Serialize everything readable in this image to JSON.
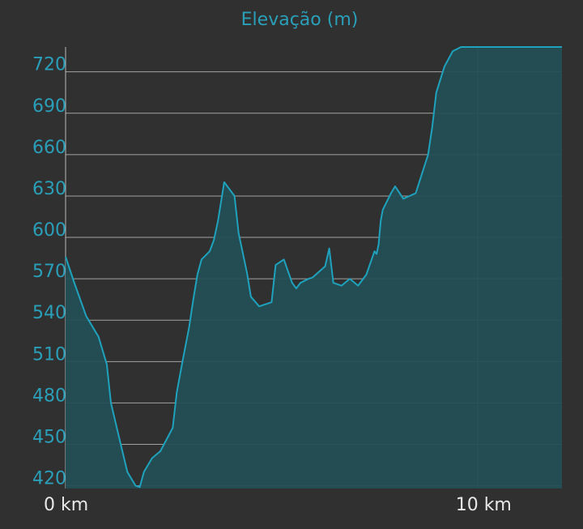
{
  "chart_data": {
    "type": "area",
    "title": "Elevação (m)",
    "xlabel": "",
    "ylabel": "",
    "x_unit": "km",
    "x_ticks": [
      {
        "value": 0,
        "label": "0 km"
      },
      {
        "value": 10,
        "label": "10 km"
      }
    ],
    "y_ticks": [
      420,
      450,
      480,
      510,
      540,
      570,
      600,
      630,
      660,
      690,
      720
    ],
    "ylim": [
      418,
      738
    ],
    "xlim": [
      0,
      12.05
    ],
    "grid": "horizontal lines at y ticks, vertical line at 10 km",
    "colors": {
      "background": "#303030",
      "line": "#1ea2bd",
      "fill": "#244f55",
      "grid": "#c8c8c8",
      "y_tick_text": "#2a9fb9",
      "x_tick_text": "#e8e8e8",
      "title": "#2a9fb9"
    },
    "series": [
      {
        "x": [
          0,
          0.2,
          0.5,
          0.8,
          1.0,
          1.1,
          1.3,
          1.5,
          1.7,
          1.8,
          1.9,
          2.1,
          2.3,
          2.6,
          2.7,
          2.85,
          3.0,
          3.1,
          3.2,
          3.3,
          3.5,
          3.6,
          3.7,
          3.85,
          4.1,
          4.2,
          4.4,
          4.5,
          4.7,
          5.0,
          5.1,
          5.3,
          5.5,
          5.6,
          5.7,
          5.9,
          6.0,
          6.3,
          6.4,
          6.5,
          6.7,
          6.9,
          7.1,
          7.3,
          7.5,
          7.55,
          7.6,
          7.65,
          7.7,
          7.9,
          8.0,
          8.2,
          8.5,
          8.8,
          8.9,
          9.0,
          9.2,
          9.4,
          9.6,
          9.7,
          9.9,
          10.1,
          10.3,
          10.5,
          10.8,
          11.0,
          11.2,
          11.45,
          11.5,
          11.6,
          11.7,
          11.8,
          12.0,
          12.05
        ],
        "y": [
          586,
          568,
          543,
          528,
          508,
          480,
          455,
          430,
          420,
          419,
          430,
          440,
          445,
          462,
          488,
          512,
          535,
          555,
          573,
          584,
          590,
          598,
          612,
          640,
          630,
          603,
          575,
          557,
          550,
          553,
          580,
          584,
          567,
          563,
          567,
          570,
          571,
          579,
          592,
          567,
          565,
          570,
          565,
          573,
          590,
          588,
          595,
          612,
          620,
          632,
          637,
          628,
          632,
          660,
          680,
          705,
          724,
          735,
          738,
          738,
          738,
          738,
          738,
          738,
          738,
          738,
          738,
          738,
          738,
          738,
          738,
          738,
          738,
          738
        ]
      }
    ]
  }
}
